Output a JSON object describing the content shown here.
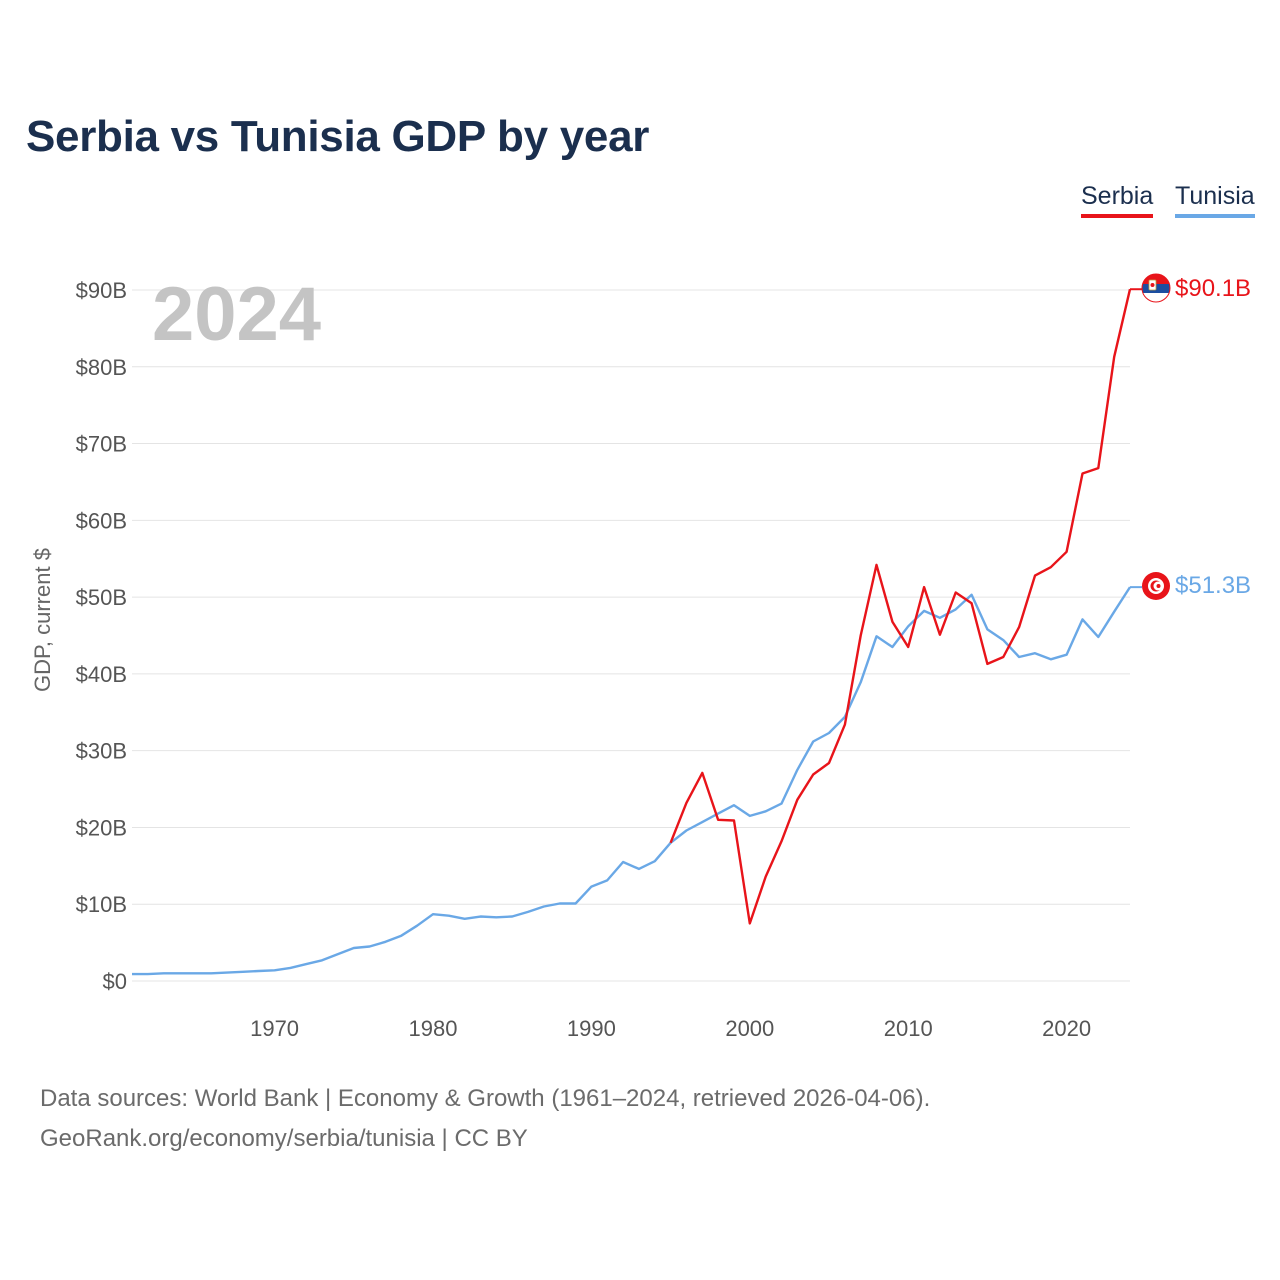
{
  "chart_data": {
    "type": "line",
    "title": "Serbia vs Tunisia GDP by year",
    "ylabel": "GDP, current $",
    "xlabel": "",
    "year_label": "2024",
    "xlim": [
      1961,
      2024
    ],
    "ylim": [
      0,
      90
    ],
    "x_ticks": [
      1970,
      1980,
      1990,
      2000,
      2010,
      2020
    ],
    "y_ticks": [
      {
        "value": 0,
        "label": "$0"
      },
      {
        "value": 10,
        "label": "$10B"
      },
      {
        "value": 20,
        "label": "$20B"
      },
      {
        "value": 30,
        "label": "$30B"
      },
      {
        "value": 40,
        "label": "$40B"
      },
      {
        "value": 50,
        "label": "$50B"
      },
      {
        "value": 60,
        "label": "$60B"
      },
      {
        "value": 70,
        "label": "$70B"
      },
      {
        "value": 80,
        "label": "$80B"
      },
      {
        "value": 90,
        "label": "$90B"
      }
    ],
    "grid": true,
    "legend_position": "top-right",
    "series": [
      {
        "name": "Serbia",
        "color": "#e8141a",
        "end_label": "$90.1B",
        "flag_icon": "serbia-flag-icon",
        "x": [
          1995,
          1996,
          1997,
          1998,
          1999,
          2000,
          2001,
          2002,
          2003,
          2004,
          2005,
          2006,
          2007,
          2008,
          2009,
          2010,
          2011,
          2012,
          2013,
          2014,
          2015,
          2016,
          2017,
          2018,
          2019,
          2020,
          2021,
          2022,
          2023,
          2024
        ],
        "values": [
          18.0,
          23.2,
          27.1,
          21.0,
          20.9,
          7.5,
          13.6,
          18.2,
          23.6,
          26.9,
          28.4,
          33.4,
          45.0,
          54.2,
          46.8,
          43.5,
          51.3,
          45.1,
          50.6,
          49.2,
          41.3,
          42.2,
          46.1,
          52.8,
          53.9,
          55.9,
          66.1,
          66.8,
          81.3,
          90.1
        ]
      },
      {
        "name": "Tunisia",
        "color": "#6aa8e6",
        "end_label": "$51.3B",
        "flag_icon": "tunisia-flag-icon",
        "x": [
          1961,
          1962,
          1963,
          1964,
          1965,
          1966,
          1967,
          1968,
          1969,
          1970,
          1971,
          1972,
          1973,
          1974,
          1975,
          1976,
          1977,
          1978,
          1979,
          1980,
          1981,
          1982,
          1983,
          1984,
          1985,
          1986,
          1987,
          1988,
          1989,
          1990,
          1991,
          1992,
          1993,
          1994,
          1995,
          1996,
          1997,
          1998,
          1999,
          2000,
          2001,
          2002,
          2003,
          2004,
          2005,
          2006,
          2007,
          2008,
          2009,
          2010,
          2011,
          2012,
          2013,
          2014,
          2015,
          2016,
          2017,
          2018,
          2019,
          2020,
          2021,
          2022,
          2023,
          2024
        ],
        "values": [
          0.9,
          0.9,
          1.0,
          1.0,
          1.0,
          1.0,
          1.1,
          1.2,
          1.3,
          1.4,
          1.7,
          2.2,
          2.7,
          3.5,
          4.3,
          4.5,
          5.1,
          5.9,
          7.2,
          8.7,
          8.5,
          8.1,
          8.4,
          8.3,
          8.4,
          9.0,
          9.7,
          10.1,
          10.1,
          12.3,
          13.1,
          15.5,
          14.6,
          15.6,
          18.0,
          19.6,
          20.7,
          21.8,
          22.9,
          21.5,
          22.1,
          23.1,
          27.5,
          31.2,
          32.3,
          34.4,
          38.9,
          44.9,
          43.5,
          46.2,
          48.2,
          47.3,
          48.4,
          50.3,
          45.8,
          44.4,
          42.2,
          42.7,
          41.9,
          42.5,
          47.1,
          44.8,
          48.1,
          51.3
        ]
      }
    ]
  },
  "legend": {
    "serbia": "Serbia",
    "tunisia": "Tunisia"
  },
  "footer": {
    "source": "Data sources: World Bank | Economy & Growth (1961–2024, retrieved 2026-04-06).",
    "credit": "GeoRank.org/economy/serbia/tunisia | CC BY"
  }
}
